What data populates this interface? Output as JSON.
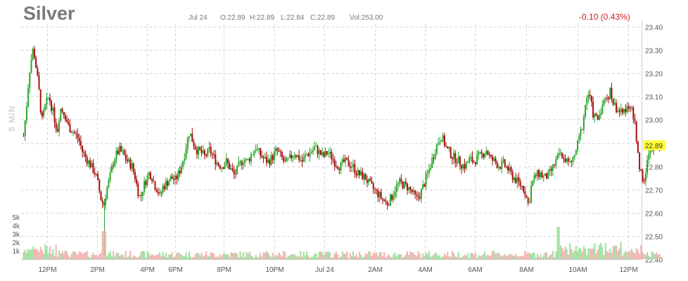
{
  "header": {
    "symbol": "Silver",
    "date": "Jul 24",
    "open": "O:22.89",
    "high": "H:22.89",
    "low": "L:22.84",
    "close": "C:22.89",
    "volume": "Vol:253.00",
    "change": "-0.10 (0.43%)",
    "interval": "5 MIN"
  },
  "colors": {
    "up": "#2aa52a",
    "down": "#a50e0e",
    "grid": "#d8d8d8",
    "last_price_bg": "#ffff33",
    "change": "#c41f1f"
  },
  "chart_data": {
    "type": "candlestick",
    "x_tick_labels": [
      "12PM",
      "2PM",
      "4PM",
      "6PM",
      "8PM",
      "10PM",
      "Jul 24",
      "2AM",
      "4AM",
      "6AM",
      "8AM",
      "10AM",
      "12PM"
    ],
    "y_tick_labels": [
      "23.40",
      "23.30",
      "23.20",
      "23.10",
      "23.00",
      "22.90",
      "22.80",
      "22.70",
      "22.60",
      "22.50",
      "22.40"
    ],
    "ylim": [
      22.4,
      23.4
    ],
    "last_price": "22.89",
    "volume_axis_labels": [
      "5k",
      "4k",
      "3k",
      "2k",
      "1k"
    ],
    "volume_ylim": [
      0,
      5000
    ],
    "grid": true,
    "price_path": [
      [
        0,
        22.93
      ],
      [
        4,
        23.05
      ],
      [
        8,
        23.2
      ],
      [
        12,
        23.28
      ],
      [
        14,
        23.31
      ],
      [
        18,
        23.22
      ],
      [
        22,
        23.12
      ],
      [
        26,
        22.99
      ],
      [
        30,
        23.05
      ],
      [
        36,
        23.1
      ],
      [
        42,
        23.03
      ],
      [
        48,
        22.95
      ],
      [
        52,
        23.05
      ],
      [
        58,
        23.03
      ],
      [
        64,
        22.97
      ],
      [
        70,
        22.95
      ],
      [
        78,
        22.92
      ],
      [
        84,
        22.86
      ],
      [
        90,
        22.83
      ],
      [
        96,
        22.8
      ],
      [
        102,
        22.77
      ],
      [
        106,
        22.72
      ],
      [
        110,
        22.66
      ],
      [
        114,
        22.63
      ],
      [
        118,
        22.7
      ],
      [
        122,
        22.74
      ],
      [
        126,
        22.8
      ],
      [
        130,
        22.84
      ],
      [
        136,
        22.87
      ],
      [
        142,
        22.85
      ],
      [
        148,
        22.82
      ],
      [
        154,
        22.8
      ],
      [
        158,
        22.76
      ],
      [
        162,
        22.7
      ],
      [
        166,
        22.66
      ],
      [
        170,
        22.71
      ],
      [
        174,
        22.74
      ],
      [
        178,
        22.77
      ],
      [
        182,
        22.76
      ],
      [
        186,
        22.72
      ],
      [
        190,
        22.7
      ],
      [
        194,
        22.67
      ],
      [
        198,
        22.71
      ],
      [
        204,
        22.73
      ],
      [
        210,
        22.75
      ],
      [
        216,
        22.74
      ],
      [
        222,
        22.78
      ],
      [
        228,
        22.84
      ],
      [
        232,
        22.9
      ],
      [
        236,
        22.95
      ],
      [
        240,
        22.91
      ],
      [
        246,
        22.87
      ],
      [
        252,
        22.86
      ],
      [
        258,
        22.84
      ],
      [
        264,
        22.87
      ],
      [
        270,
        22.84
      ],
      [
        276,
        22.81
      ],
      [
        282,
        22.8
      ],
      [
        288,
        22.82
      ],
      [
        294,
        22.79
      ],
      [
        300,
        22.76
      ],
      [
        306,
        22.8
      ],
      [
        312,
        22.83
      ],
      [
        318,
        22.82
      ],
      [
        324,
        22.85
      ],
      [
        330,
        22.88
      ],
      [
        336,
        22.85
      ],
      [
        342,
        22.83
      ],
      [
        348,
        22.82
      ],
      [
        354,
        22.84
      ],
      [
        360,
        22.87
      ],
      [
        366,
        22.84
      ],
      [
        372,
        22.81
      ],
      [
        378,
        22.83
      ],
      [
        384,
        22.86
      ],
      [
        390,
        22.84
      ],
      [
        396,
        22.82
      ],
      [
        402,
        22.85
      ],
      [
        408,
        22.86
      ],
      [
        414,
        22.88
      ],
      [
        420,
        22.86
      ],
      [
        426,
        22.84
      ],
      [
        432,
        22.86
      ],
      [
        438,
        22.84
      ],
      [
        444,
        22.81
      ],
      [
        450,
        22.8
      ],
      [
        456,
        22.82
      ],
      [
        462,
        22.81
      ],
      [
        468,
        22.8
      ],
      [
        474,
        22.77
      ],
      [
        480,
        22.76
      ],
      [
        486,
        22.75
      ],
      [
        492,
        22.72
      ],
      [
        498,
        22.7
      ],
      [
        504,
        22.68
      ],
      [
        510,
        22.66
      ],
      [
        516,
        22.64
      ],
      [
        522,
        22.66
      ],
      [
        528,
        22.7
      ],
      [
        534,
        22.73
      ],
      [
        540,
        22.72
      ],
      [
        546,
        22.71
      ],
      [
        552,
        22.69
      ],
      [
        558,
        22.66
      ],
      [
        564,
        22.68
      ],
      [
        570,
        22.73
      ],
      [
        576,
        22.78
      ],
      [
        582,
        22.84
      ],
      [
        586,
        22.88
      ],
      [
        590,
        22.91
      ],
      [
        594,
        22.93
      ],
      [
        598,
        22.9
      ],
      [
        602,
        22.87
      ],
      [
        606,
        22.86
      ],
      [
        610,
        22.84
      ],
      [
        616,
        22.83
      ],
      [
        622,
        22.81
      ],
      [
        628,
        22.8
      ],
      [
        634,
        22.83
      ],
      [
        640,
        22.82
      ],
      [
        646,
        22.84
      ],
      [
        652,
        22.85
      ],
      [
        658,
        22.87
      ],
      [
        664,
        22.83
      ],
      [
        670,
        22.82
      ],
      [
        676,
        22.8
      ],
      [
        682,
        22.81
      ],
      [
        688,
        22.79
      ],
      [
        694,
        22.76
      ],
      [
        700,
        22.74
      ],
      [
        706,
        22.72
      ],
      [
        712,
        22.7
      ],
      [
        718,
        22.63
      ],
      [
        722,
        22.72
      ],
      [
        728,
        22.76
      ],
      [
        734,
        22.77
      ],
      [
        740,
        22.75
      ],
      [
        746,
        22.76
      ],
      [
        752,
        22.79
      ],
      [
        758,
        22.83
      ],
      [
        764,
        22.85
      ],
      [
        770,
        22.83
      ],
      [
        776,
        22.81
      ],
      [
        782,
        22.83
      ],
      [
        788,
        22.9
      ],
      [
        794,
        22.97
      ],
      [
        798,
        23.05
      ],
      [
        802,
        23.12
      ],
      [
        806,
        23.08
      ],
      [
        810,
        23.02
      ],
      [
        816,
        23.0
      ],
      [
        822,
        23.06
      ],
      [
        828,
        23.09
      ],
      [
        834,
        23.12
      ],
      [
        840,
        23.06
      ],
      [
        846,
        23.04
      ],
      [
        852,
        23.02
      ],
      [
        858,
        23.07
      ],
      [
        862,
        23.06
      ],
      [
        866,
        23.02
      ],
      [
        870,
        22.96
      ],
      [
        874,
        22.83
      ],
      [
        878,
        22.77
      ],
      [
        882,
        22.73
      ],
      [
        886,
        22.82
      ],
      [
        890,
        22.85
      ],
      [
        894,
        22.88
      ],
      [
        898,
        22.9
      ],
      [
        902,
        22.88
      ],
      [
        906,
        22.89
      ]
    ]
  }
}
